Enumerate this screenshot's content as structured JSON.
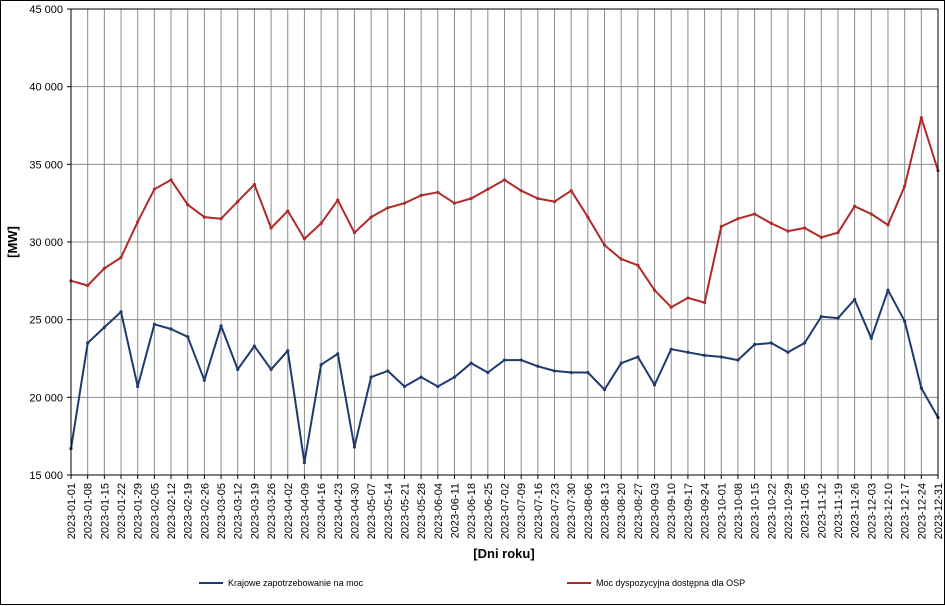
{
  "chart_data": {
    "type": "line",
    "xlabel": "[Dni roku]",
    "ylabel": "[MW]",
    "ylim": [
      15000,
      45000
    ],
    "yticks": [
      15000,
      20000,
      25000,
      30000,
      35000,
      40000,
      45000
    ],
    "ytick_labels": [
      "15 000",
      "20 000",
      "25 000",
      "30 000",
      "35 000",
      "40 000",
      "45 000"
    ],
    "xlim": [
      "2023-01-01",
      "2023-12-31"
    ],
    "xtick_labels": [
      "2023-01-01",
      "2023-01-08",
      "2023-01-15",
      "2023-01-22",
      "2023-01-29",
      "2023-02-05",
      "2023-02-12",
      "2023-02-19",
      "2023-02-26",
      "2023-03-05",
      "2023-03-12",
      "2023-03-19",
      "2023-03-26",
      "2023-04-02",
      "2023-04-09",
      "2023-04-16",
      "2023-04-23",
      "2023-04-30",
      "2023-05-07",
      "2023-05-14",
      "2023-05-21",
      "2023-05-28",
      "2023-06-04",
      "2023-06-11",
      "2023-06-18",
      "2023-06-25",
      "2023-07-02",
      "2023-07-09",
      "2023-07-16",
      "2023-07-23",
      "2023-07-30",
      "2023-08-06",
      "2023-08-13",
      "2023-08-20",
      "2023-08-27",
      "2023-09-03",
      "2023-09-10",
      "2023-09-17",
      "2023-09-24",
      "2023-10-01",
      "2023-10-08",
      "2023-10-15",
      "2023-10-22",
      "2023-10-29",
      "2023-11-05",
      "2023-11-12",
      "2023-11-19",
      "2023-11-26",
      "2023-12-03",
      "2023-12-10",
      "2023-12-17",
      "2023-12-24",
      "2023-12-31"
    ],
    "grid": true,
    "legend_position": "bottom",
    "series": [
      {
        "name": "Krajowe zapotrzebowanie na moc",
        "color": "#1f3a6e",
        "x": [
          "2023-01-01",
          "2023-01-08",
          "2023-01-15",
          "2023-01-22",
          "2023-01-29",
          "2023-02-05",
          "2023-02-12",
          "2023-02-19",
          "2023-02-26",
          "2023-03-05",
          "2023-03-12",
          "2023-03-19",
          "2023-03-26",
          "2023-04-02",
          "2023-04-09",
          "2023-04-16",
          "2023-04-23",
          "2023-04-30",
          "2023-05-07",
          "2023-05-14",
          "2023-05-21",
          "2023-05-28",
          "2023-06-04",
          "2023-06-11",
          "2023-06-18",
          "2023-06-25",
          "2023-07-02",
          "2023-07-09",
          "2023-07-16",
          "2023-07-23",
          "2023-07-30",
          "2023-08-06",
          "2023-08-13",
          "2023-08-20",
          "2023-08-27",
          "2023-09-03",
          "2023-09-10",
          "2023-09-17",
          "2023-09-24",
          "2023-10-01",
          "2023-10-08",
          "2023-10-15",
          "2023-10-22",
          "2023-10-29",
          "2023-11-05",
          "2023-11-12",
          "2023-11-19",
          "2023-11-26",
          "2023-12-03",
          "2023-12-10",
          "2023-12-17",
          "2023-12-24",
          "2023-12-31"
        ],
        "values": [
          16700,
          23500,
          24500,
          25500,
          20700,
          24700,
          24400,
          23900,
          21100,
          24600,
          21800,
          23300,
          21800,
          23000,
          15800,
          22100,
          22800,
          16800,
          21300,
          21700,
          20700,
          21300,
          20700,
          21300,
          22200,
          21600,
          22400,
          22400,
          22000,
          21700,
          21600,
          21600,
          20500,
          22200,
          22600,
          20800,
          23100,
          22900,
          22700,
          22600,
          22400,
          23400,
          23500,
          22900,
          23500,
          25200,
          25100,
          26300,
          23800,
          26900,
          24900,
          20600,
          18700
        ]
      },
      {
        "name": "Moc dyspozycyjna dostępna dla OSP",
        "color": "#b02a2a",
        "x": [
          "2023-01-01",
          "2023-01-08",
          "2023-01-15",
          "2023-01-22",
          "2023-01-29",
          "2023-02-05",
          "2023-02-12",
          "2023-02-19",
          "2023-02-26",
          "2023-03-05",
          "2023-03-12",
          "2023-03-19",
          "2023-03-26",
          "2023-04-02",
          "2023-04-09",
          "2023-04-16",
          "2023-04-23",
          "2023-04-30",
          "2023-05-07",
          "2023-05-14",
          "2023-05-21",
          "2023-05-28",
          "2023-06-04",
          "2023-06-11",
          "2023-06-18",
          "2023-06-25",
          "2023-07-02",
          "2023-07-09",
          "2023-07-16",
          "2023-07-23",
          "2023-07-30",
          "2023-08-06",
          "2023-08-13",
          "2023-08-20",
          "2023-08-27",
          "2023-09-03",
          "2023-09-10",
          "2023-09-17",
          "2023-09-24",
          "2023-10-01",
          "2023-10-08",
          "2023-10-15",
          "2023-10-22",
          "2023-10-29",
          "2023-11-05",
          "2023-11-12",
          "2023-11-19",
          "2023-11-26",
          "2023-12-03",
          "2023-12-10",
          "2023-12-17",
          "2023-12-24",
          "2023-12-31"
        ],
        "values": [
          27500,
          27200,
          28300,
          29000,
          31300,
          33400,
          34000,
          32400,
          31600,
          31500,
          32600,
          33700,
          30900,
          32000,
          30200,
          31200,
          32700,
          30600,
          31600,
          32200,
          32500,
          33000,
          33200,
          32500,
          32800,
          33400,
          34000,
          33300,
          32800,
          32600,
          33300,
          31600,
          29800,
          28900,
          28500,
          26900,
          25800,
          26400,
          26100,
          31000,
          31500,
          31800,
          31200,
          30700,
          30900,
          30300,
          30600,
          32300,
          31800,
          31100,
          33600,
          38000,
          34600
        ]
      }
    ]
  }
}
